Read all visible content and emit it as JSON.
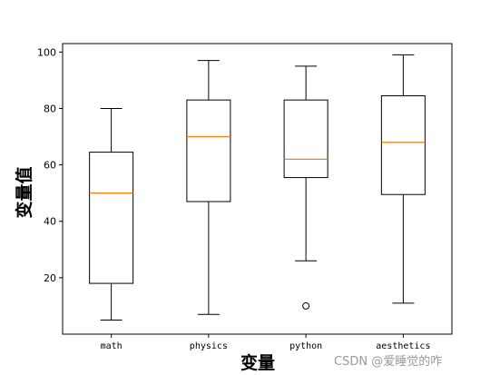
{
  "chart_data": {
    "type": "box",
    "xlabel": "变量",
    "ylabel": "变量值",
    "ylim": [
      0,
      103
    ],
    "yticks": [
      20,
      40,
      60,
      80,
      100
    ],
    "grid": false,
    "categories": [
      "math",
      "physics",
      "python",
      "aesthetics"
    ],
    "boxes": [
      {
        "category": "math",
        "whisker_low": 5,
        "q1": 18,
        "median": 50,
        "q3": 64.5,
        "whisker_high": 80,
        "outliers": []
      },
      {
        "category": "physics",
        "whisker_low": 7,
        "q1": 47,
        "median": 70,
        "q3": 83,
        "whisker_high": 97,
        "outliers": []
      },
      {
        "category": "python",
        "whisker_low": 26,
        "q1": 55.5,
        "median": 62,
        "q3": 83,
        "whisker_high": 95,
        "outliers": [
          10
        ]
      },
      {
        "category": "aesthetics",
        "whisker_low": 11,
        "q1": 49.5,
        "median": 68,
        "q3": 84.5,
        "whisker_high": 99,
        "outliers": []
      }
    ],
    "colors": {
      "box": "#000000",
      "median": "#ff7f0e",
      "outlier_edge": "#000000"
    }
  },
  "watermark": "CSDN @爱睡觉的咋"
}
